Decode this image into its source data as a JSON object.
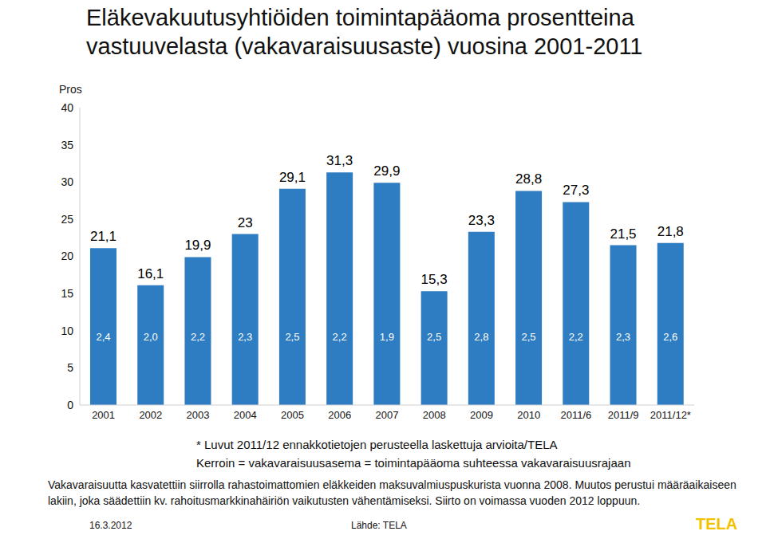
{
  "chart_data": {
    "type": "bar",
    "title": "Eläkevakuutusyhtiöiden toimintapääoma prosentteina vastuuvelasta (vakavaraisuusaste) vuosina 2001-2011",
    "y_label": "Pros",
    "categories": [
      "2001",
      "2002",
      "2003",
      "2004",
      "2005",
      "2006",
      "2007",
      "2008",
      "2009",
      "2010",
      "2011/6",
      "2011/9",
      "2011/12*"
    ],
    "values": [
      21.1,
      16.1,
      19.9,
      23,
      29.1,
      31.3,
      29.9,
      15.3,
      23.3,
      28.8,
      27.3,
      21.5,
      21.8
    ],
    "value_labels": [
      "21,1",
      "16,1",
      "19,9",
      "23",
      "29,1",
      "31,3",
      "29,9",
      "15,3",
      "23,3",
      "28,8",
      "27,3",
      "21,5",
      "21,8"
    ],
    "color": "#2e7dc2",
    "ylim": [
      0,
      40
    ],
    "yticks": [
      0,
      5,
      10,
      15,
      20,
      25,
      30,
      35,
      40
    ],
    "grid": false,
    "data_labels": true,
    "multiplier": {
      "values": [
        2.4,
        2.0,
        2.2,
        2.3,
        2.5,
        2.2,
        1.9,
        2.5,
        2.8,
        2.5,
        2.2,
        2.3,
        2.6
      ],
      "value_labels": [
        "2,4",
        "2,0",
        "2,2",
        "2,3",
        "2,5",
        "2,2",
        "1,9",
        "2,5",
        "2,8",
        "2,5",
        "2,2",
        "2,3",
        "2,6"
      ]
    },
    "notes": [
      "* Luvut 2011/12 ennakkotietojen perusteella laskettuja arvioita/TELA",
      "Kerroin = vakavaraisuusasema = toimintapääoma suhteessa vakavaraisuusrajaan",
      "Vakavaraisuutta kasvatettiin siirrolla rahastoimattomien eläkkeiden maksuvalmiuspuskurista vuonna 2008. Muutos perustui määräaikaiseen lakiin, joka säädettiin kv. rahoitusmarkkinahäiriön vaikutusten vähentämiseksi. Siirto on voimassa vuoden 2012 loppuun."
    ],
    "date": "16.3.2012",
    "source": "Lähde: TELA",
    "logo": "TELA"
  }
}
